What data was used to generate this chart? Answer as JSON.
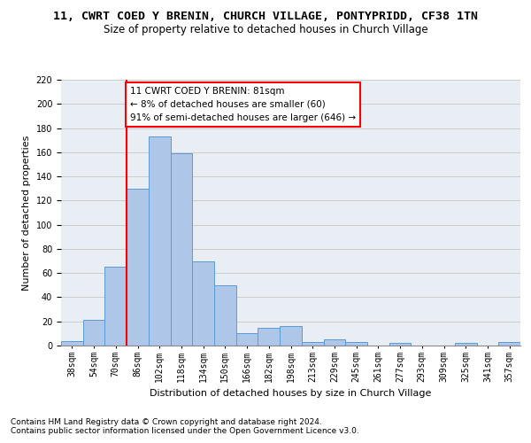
{
  "title1": "11, CWRT COED Y BRENIN, CHURCH VILLAGE, PONTYPRIDD, CF38 1TN",
  "title2": "Size of property relative to detached houses in Church Village",
  "xlabel": "Distribution of detached houses by size in Church Village",
  "ylabel": "Number of detached properties",
  "footnote1": "Contains HM Land Registry data © Crown copyright and database right 2024.",
  "footnote2": "Contains public sector information licensed under the Open Government Licence v3.0.",
  "bar_labels": [
    "38sqm",
    "54sqm",
    "70sqm",
    "86sqm",
    "102sqm",
    "118sqm",
    "134sqm",
    "150sqm",
    "166sqm",
    "182sqm",
    "198sqm",
    "213sqm",
    "229sqm",
    "245sqm",
    "261sqm",
    "277sqm",
    "293sqm",
    "309sqm",
    "325sqm",
    "341sqm",
    "357sqm"
  ],
  "bar_values": [
    4,
    21,
    65,
    130,
    173,
    159,
    70,
    50,
    10,
    15,
    16,
    3,
    5,
    3,
    0,
    2,
    0,
    0,
    2,
    0,
    3
  ],
  "bar_color": "#aec6e8",
  "bar_edge_color": "#5b9bd5",
  "vline_color": "red",
  "annotation_text": "11 CWRT COED Y BRENIN: 81sqm\n← 8% of detached houses are smaller (60)\n91% of semi-detached houses are larger (646) →",
  "ylim": [
    0,
    220
  ],
  "yticks": [
    0,
    20,
    40,
    60,
    80,
    100,
    120,
    140,
    160,
    180,
    200,
    220
  ],
  "grid_color": "#cccccc",
  "bg_color": "#e8eef4",
  "title1_fontsize": 9.5,
  "title2_fontsize": 8.5,
  "axis_label_fontsize": 8,
  "tick_fontsize": 7,
  "annotation_fontsize": 7.5,
  "footnote_fontsize": 6.5,
  "vline_pos": 2.5
}
